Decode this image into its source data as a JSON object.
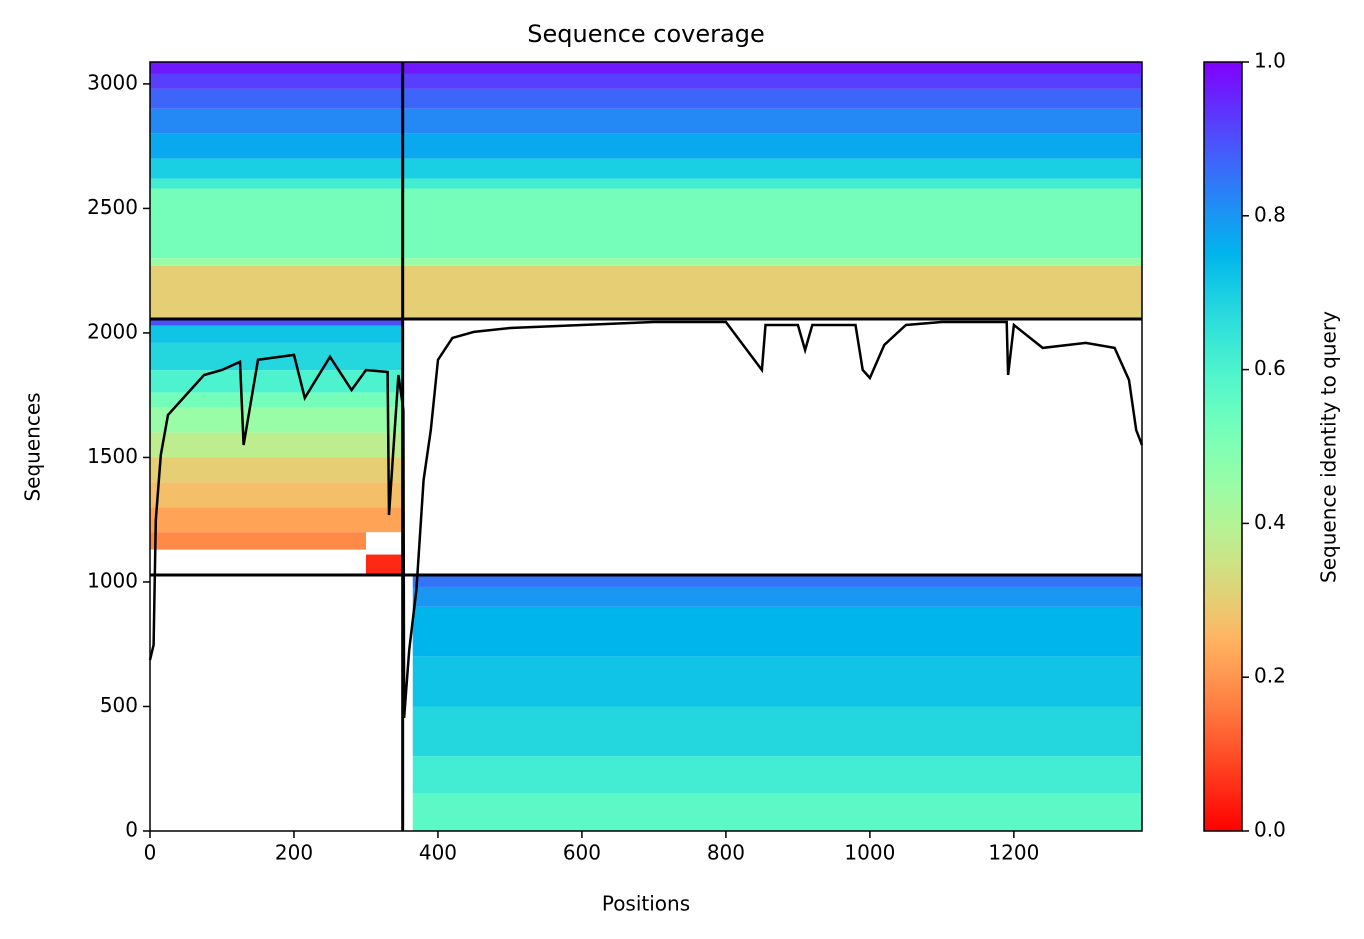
{
  "chart_data": {
    "type": "heatmap",
    "title": "Sequence coverage",
    "x_label": "Positions",
    "y_label": "Sequences",
    "xlim": [
      0,
      1378
    ],
    "xticks": [
      0,
      200,
      400,
      600,
      800,
      1000,
      1200
    ],
    "ylim": [
      0,
      3088
    ],
    "yticks": [
      0,
      500,
      1000,
      1500,
      2000,
      2500,
      3000
    ],
    "bands": [
      {
        "x": [
          0,
          1378
        ],
        "y": [
          3040,
          3088
        ],
        "identity": 0.97
      },
      {
        "x": [
          0,
          1378
        ],
        "y": [
          2980,
          3040
        ],
        "identity": 0.92
      },
      {
        "x": [
          0,
          1378
        ],
        "y": [
          2900,
          2980
        ],
        "identity": 0.87
      },
      {
        "x": [
          0,
          1378
        ],
        "y": [
          2800,
          2900
        ],
        "identity": 0.82
      },
      {
        "x": [
          0,
          1378
        ],
        "y": [
          2700,
          2800
        ],
        "identity": 0.77
      },
      {
        "x": [
          0,
          1378
        ],
        "y": [
          2620,
          2700
        ],
        "identity": 0.7
      },
      {
        "x": [
          0,
          1378
        ],
        "y": [
          2580,
          2620
        ],
        "identity": 0.62
      },
      {
        "x": [
          0,
          1378
        ],
        "y": [
          2300,
          2580
        ],
        "identity": 0.52
      },
      {
        "x": [
          0,
          1378
        ],
        "y": [
          2270,
          2300
        ],
        "identity": 0.45
      },
      {
        "x": [
          0,
          1378
        ],
        "y": [
          2060,
          2270
        ],
        "identity": 0.3
      },
      {
        "x": [
          0,
          351
        ],
        "y": [
          2030,
          2056
        ],
        "identity": 0.9
      },
      {
        "x": [
          0,
          351
        ],
        "y": [
          1960,
          2030
        ],
        "identity": 0.72
      },
      {
        "x": [
          0,
          351
        ],
        "y": [
          1850,
          1960
        ],
        "identity": 0.68
      },
      {
        "x": [
          0,
          351
        ],
        "y": [
          1760,
          1850
        ],
        "identity": 0.6
      },
      {
        "x": [
          0,
          351
        ],
        "y": [
          1700,
          1760
        ],
        "identity": 0.52
      },
      {
        "x": [
          0,
          351
        ],
        "y": [
          1600,
          1700
        ],
        "identity": 0.45
      },
      {
        "x": [
          0,
          351
        ],
        "y": [
          1500,
          1600
        ],
        "identity": 0.38
      },
      {
        "x": [
          0,
          351
        ],
        "y": [
          1400,
          1500
        ],
        "identity": 0.3
      },
      {
        "x": [
          0,
          351
        ],
        "y": [
          1300,
          1400
        ],
        "identity": 0.27
      },
      {
        "x": [
          0,
          351
        ],
        "y": [
          1200,
          1300
        ],
        "identity": 0.22
      },
      {
        "x": [
          0,
          300
        ],
        "y": [
          1130,
          1200
        ],
        "identity": 0.18
      },
      {
        "x": [
          300,
          351
        ],
        "y": [
          1028,
          1110
        ],
        "identity": 0.05
      },
      {
        "x": [
          365,
          1378
        ],
        "y": [
          980,
          1028
        ],
        "identity": 0.85
      },
      {
        "x": [
          365,
          1378
        ],
        "y": [
          900,
          980
        ],
        "identity": 0.8
      },
      {
        "x": [
          365,
          1378
        ],
        "y": [
          700,
          900
        ],
        "identity": 0.75
      },
      {
        "x": [
          365,
          1378
        ],
        "y": [
          500,
          700
        ],
        "identity": 0.72
      },
      {
        "x": [
          365,
          1378
        ],
        "y": [
          300,
          500
        ],
        "identity": 0.68
      },
      {
        "x": [
          365,
          1378
        ],
        "y": [
          150,
          300
        ],
        "identity": 0.62
      },
      {
        "x": [
          365,
          1378
        ],
        "y": [
          0,
          150
        ],
        "identity": 0.57
      }
    ],
    "block_edges": {
      "x": [
        351
      ],
      "y": [
        1028,
        2056
      ]
    },
    "coverage": {
      "color": "#000000",
      "x": [
        0,
        5,
        8,
        15,
        25,
        50,
        75,
        100,
        125,
        130,
        150,
        200,
        215,
        250,
        280,
        300,
        330,
        332,
        345,
        352,
        353,
        360,
        370,
        380,
        390,
        400,
        420,
        450,
        500,
        600,
        700,
        800,
        850,
        855,
        900,
        910,
        920,
        980,
        990,
        1000,
        1020,
        1050,
        1100,
        1190,
        1192,
        1200,
        1240,
        1300,
        1340,
        1360,
        1370,
        1378
      ],
      "values": [
        687,
        747,
        1249,
        1510,
        1671,
        1751,
        1831,
        1851,
        1884,
        1550,
        1892,
        1912,
        1739,
        1904,
        1771,
        1851,
        1843,
        1269,
        1831,
        1691,
        454,
        727,
        968,
        1410,
        1610,
        1892,
        1980,
        2004,
        2020,
        2032,
        2044,
        2044,
        1851,
        2032,
        2032,
        1931,
        2032,
        2032,
        1851,
        1819,
        1952,
        2032,
        2044,
        2044,
        1831,
        2032,
        1940,
        1960,
        1940,
        1811,
        1610,
        1550
      ]
    },
    "colorbar": {
      "label": "Sequence identity to query",
      "colormap": "rainbow_r",
      "lim": [
        0,
        1
      ],
      "ticks": [
        {
          "value": 0,
          "label": "0.0"
        },
        0.2,
        0.4,
        0.6,
        0.8,
        {
          "value": 1,
          "label": "1.0"
        }
      ]
    }
  }
}
